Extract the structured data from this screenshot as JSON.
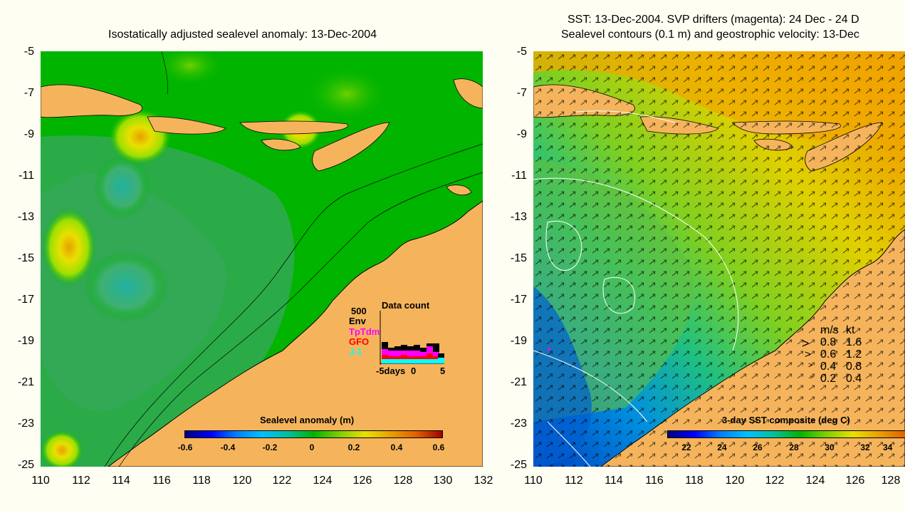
{
  "left_map": {
    "title": "Isostatically adjusted sealevel anomaly: 13-Dec-2004",
    "y_ticks": [
      "-5",
      "-7",
      "-9",
      "-11",
      "-13",
      "-15",
      "-17",
      "-19",
      "-21",
      "-23",
      "-25"
    ],
    "x_ticks": [
      "110",
      "112",
      "114",
      "116",
      "118",
      "120",
      "122",
      "124",
      "126",
      "128",
      "130",
      "132"
    ],
    "colorbar_label": "Sealevel anomaly (m)",
    "colorbar_ticks": [
      "-0.6",
      "-0.4",
      "-0.2",
      "0",
      "0.2",
      "0.4",
      "0.6"
    ],
    "data_count": {
      "title": "Data count",
      "scale": "500",
      "legend": [
        "Env",
        "TpTdm",
        "GFO",
        "J-1"
      ],
      "x_labels": [
        "-5days",
        "0",
        "5"
      ]
    }
  },
  "right_map": {
    "title_line1": "SST: 13-Dec-2004. SVP drifters (magenta): 24 Dec - 24 D",
    "title_line2": "Sealevel contours (0.1 m) and geostrophic velocity: 13-Dec",
    "y_ticks": [
      "-5",
      "-7",
      "-9",
      "-11",
      "-13",
      "-15",
      "-17",
      "-19",
      "-21",
      "-23",
      "-25"
    ],
    "x_ticks": [
      "110",
      "112",
      "114",
      "116",
      "118",
      "120",
      "122",
      "124",
      "126",
      "128"
    ],
    "colorbar_label": "3-day SST composite (deg C)",
    "colorbar_ticks": [
      "22",
      "24",
      "26",
      "28",
      "30",
      "32",
      "34"
    ],
    "velocity_legend": {
      "header_ms": "m/s",
      "header_kt": "kt",
      "rows": [
        {
          "ms": "0.8",
          "kt": "1.6"
        },
        {
          "ms": "0.6",
          "kt": "1.2"
        },
        {
          "ms": "0.4",
          "kt": "0.8"
        },
        {
          "ms": "0.2",
          "kt": "0.4"
        }
      ]
    }
  },
  "colors": {
    "land": "#f5b45c",
    "ocean_green": "#00b400",
    "background": "#fffef2"
  }
}
